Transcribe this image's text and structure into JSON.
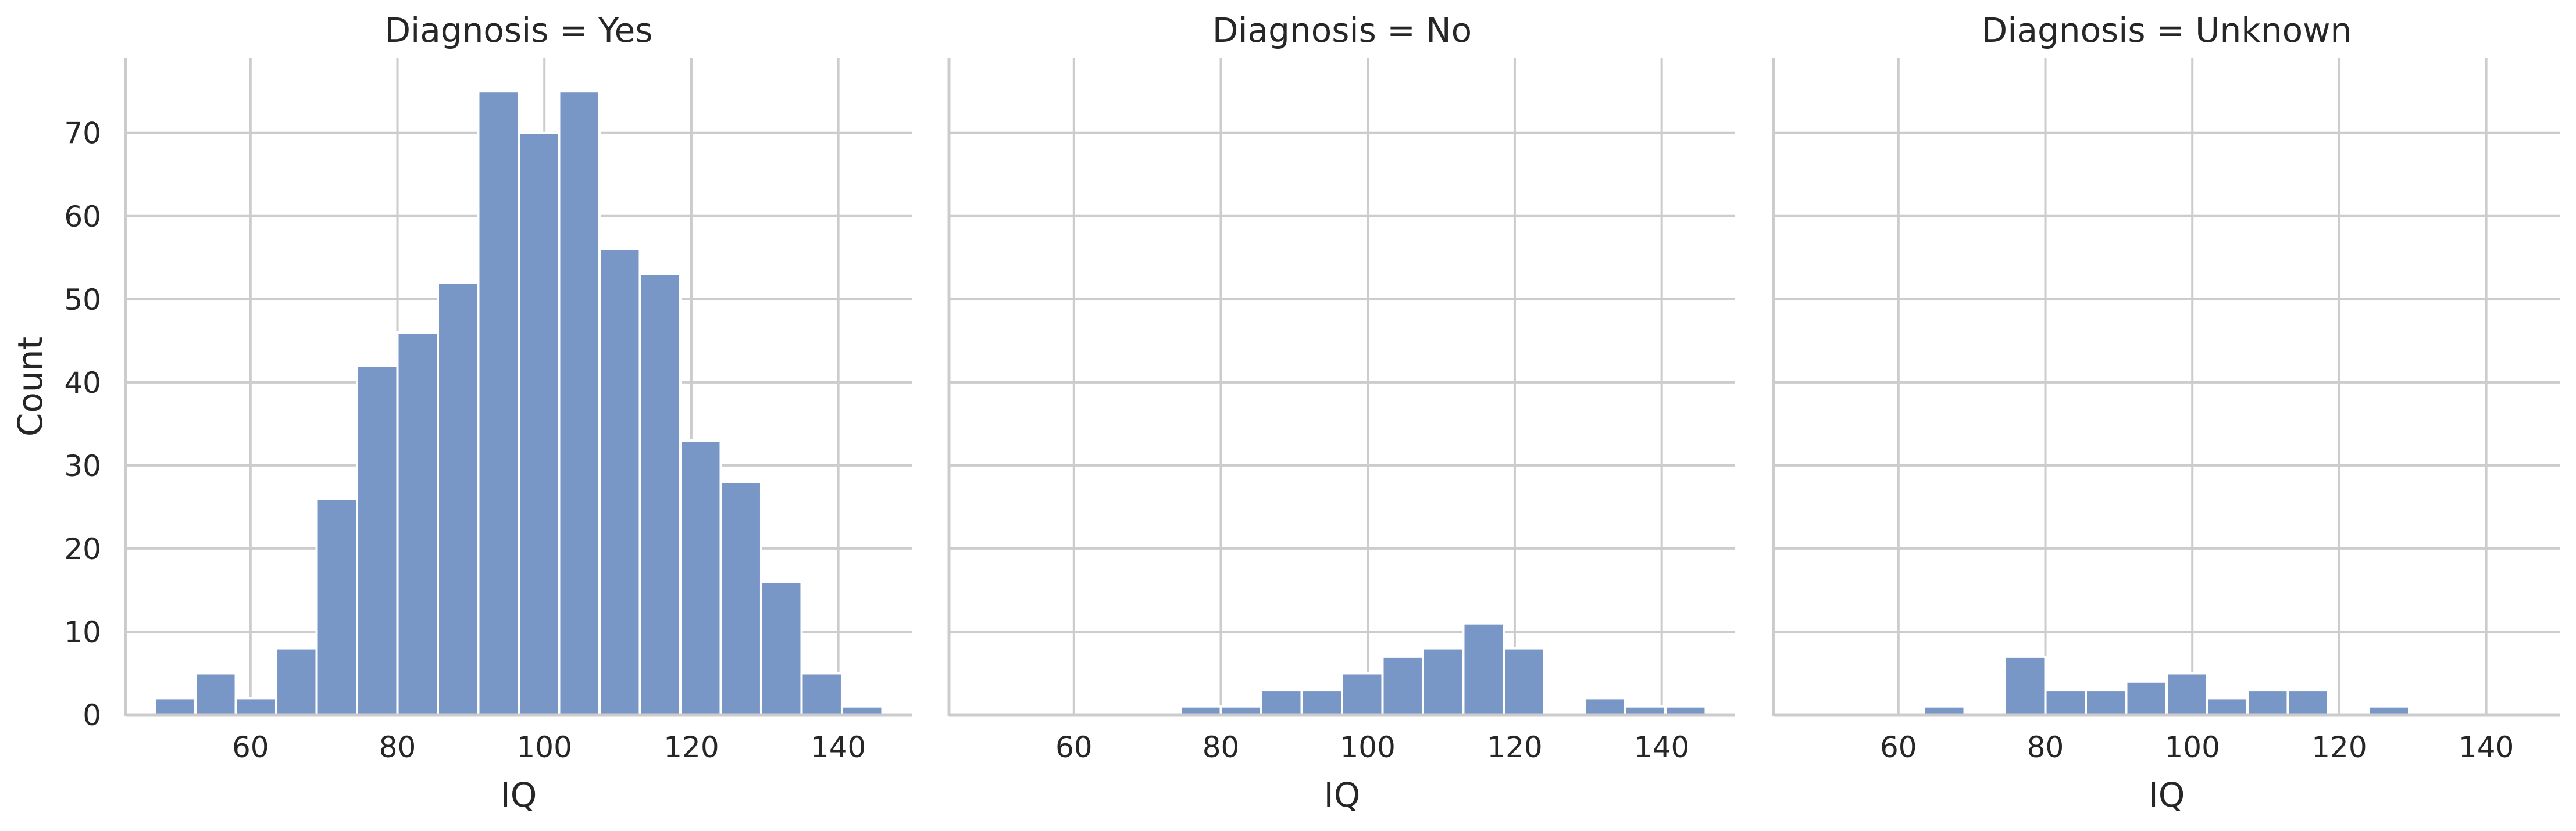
{
  "chart_data": {
    "type": "bar",
    "kind": "histogram-facets",
    "xlabel": "IQ",
    "ylabel": "Count",
    "xlim": [
      43,
      150
    ],
    "ylim": [
      0,
      79
    ],
    "xticks": [
      60,
      80,
      100,
      120,
      140
    ],
    "yticks": [
      0,
      10,
      20,
      30,
      40,
      50,
      60,
      70
    ],
    "grid": true,
    "bar_color": "#7896c6",
    "facets": [
      {
        "title": "Diagnosis = Yes",
        "bins": [
          {
            "x0": 47,
            "x1": 52.5,
            "count": 2
          },
          {
            "x0": 52.5,
            "x1": 58,
            "count": 5
          },
          {
            "x0": 58,
            "x1": 63.5,
            "count": 2
          },
          {
            "x0": 63.5,
            "x1": 69,
            "count": 8
          },
          {
            "x0": 69,
            "x1": 74.5,
            "count": 26
          },
          {
            "x0": 74.5,
            "x1": 80,
            "count": 42
          },
          {
            "x0": 80,
            "x1": 85.5,
            "count": 46
          },
          {
            "x0": 85.5,
            "x1": 91,
            "count": 52
          },
          {
            "x0": 91,
            "x1": 96.5,
            "count": 75
          },
          {
            "x0": 96.5,
            "x1": 102,
            "count": 70
          },
          {
            "x0": 102,
            "x1": 107.5,
            "count": 75
          },
          {
            "x0": 107.5,
            "x1": 113,
            "count": 56
          },
          {
            "x0": 113,
            "x1": 118.5,
            "count": 53
          },
          {
            "x0": 118.5,
            "x1": 124,
            "count": 33
          },
          {
            "x0": 124,
            "x1": 129.5,
            "count": 28
          },
          {
            "x0": 129.5,
            "x1": 135,
            "count": 16
          },
          {
            "x0": 135,
            "x1": 140.5,
            "count": 5
          },
          {
            "x0": 140.5,
            "x1": 146,
            "count": 1
          }
        ]
      },
      {
        "title": "Diagnosis = No",
        "bins": [
          {
            "x0": 74.5,
            "x1": 80,
            "count": 1
          },
          {
            "x0": 80,
            "x1": 85.5,
            "count": 1
          },
          {
            "x0": 85.5,
            "x1": 91,
            "count": 3
          },
          {
            "x0": 91,
            "x1": 96.5,
            "count": 3
          },
          {
            "x0": 96.5,
            "x1": 102,
            "count": 5
          },
          {
            "x0": 102,
            "x1": 107.5,
            "count": 7
          },
          {
            "x0": 107.5,
            "x1": 113,
            "count": 8
          },
          {
            "x0": 113,
            "x1": 118.5,
            "count": 11
          },
          {
            "x0": 118.5,
            "x1": 124,
            "count": 8
          },
          {
            "x0": 129.5,
            "x1": 135,
            "count": 2
          },
          {
            "x0": 135,
            "x1": 140.5,
            "count": 1
          },
          {
            "x0": 140.5,
            "x1": 146,
            "count": 1
          }
        ]
      },
      {
        "title": "Diagnosis = Unknown",
        "bins": [
          {
            "x0": 63.5,
            "x1": 69,
            "count": 1
          },
          {
            "x0": 74.5,
            "x1": 80,
            "count": 7
          },
          {
            "x0": 80,
            "x1": 85.5,
            "count": 3
          },
          {
            "x0": 85.5,
            "x1": 91,
            "count": 3
          },
          {
            "x0": 91,
            "x1": 96.5,
            "count": 4
          },
          {
            "x0": 96.5,
            "x1": 102,
            "count": 5
          },
          {
            "x0": 102,
            "x1": 107.5,
            "count": 2
          },
          {
            "x0": 107.5,
            "x1": 113,
            "count": 3
          },
          {
            "x0": 113,
            "x1": 118.5,
            "count": 3
          },
          {
            "x0": 124,
            "x1": 129.5,
            "count": 1
          }
        ]
      }
    ]
  }
}
